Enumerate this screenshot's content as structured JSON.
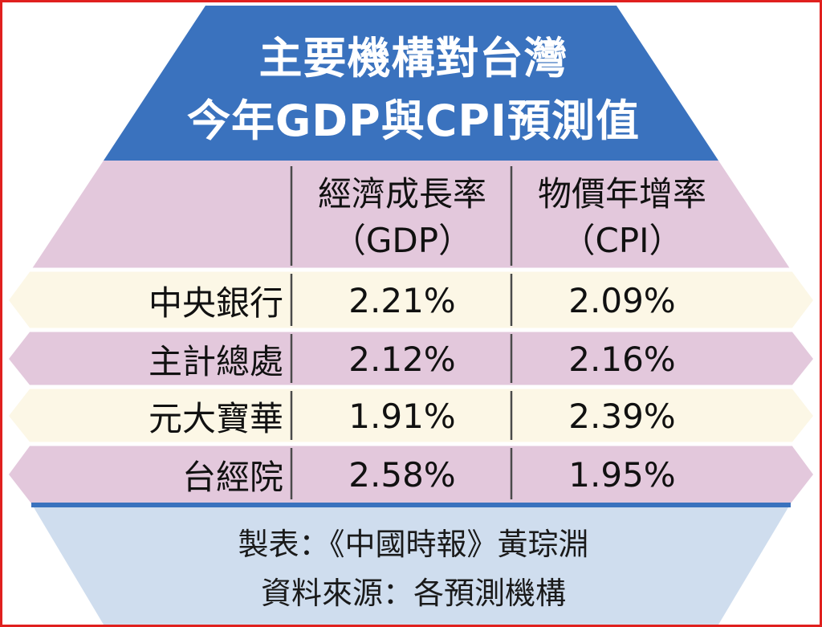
{
  "title": {
    "line1": "主要機構對台灣",
    "line2": "今年GDP與CPI預測值"
  },
  "chart_data": {
    "type": "table",
    "columns": [
      {
        "name": "經濟成長率",
        "sub": "（GDP）"
      },
      {
        "name": "物價年增率",
        "sub": "（CPI）"
      }
    ],
    "rows": [
      {
        "label": "中央銀行",
        "gdp": "2.21%",
        "cpi": "2.09%"
      },
      {
        "label": "主計總處",
        "gdp": "2.12%",
        "cpi": "2.16%"
      },
      {
        "label": "元大寶華",
        "gdp": "1.91%",
        "cpi": "2.39%"
      },
      {
        "label": "台經院",
        "gdp": "2.58%",
        "cpi": "1.95%"
      }
    ]
  },
  "footer": {
    "line1": "製表：《中國時報》黃琮淵",
    "line2": "資料來源：各預測機構"
  },
  "colors": {
    "title_band": "#3a72be",
    "header_band": "#e3c8dc",
    "row_light": "#fcf7e6",
    "row_dark": "#e3c8dc",
    "footer_band": "#cfddee",
    "divider": "#3a72be",
    "frame": "#e0201e"
  }
}
